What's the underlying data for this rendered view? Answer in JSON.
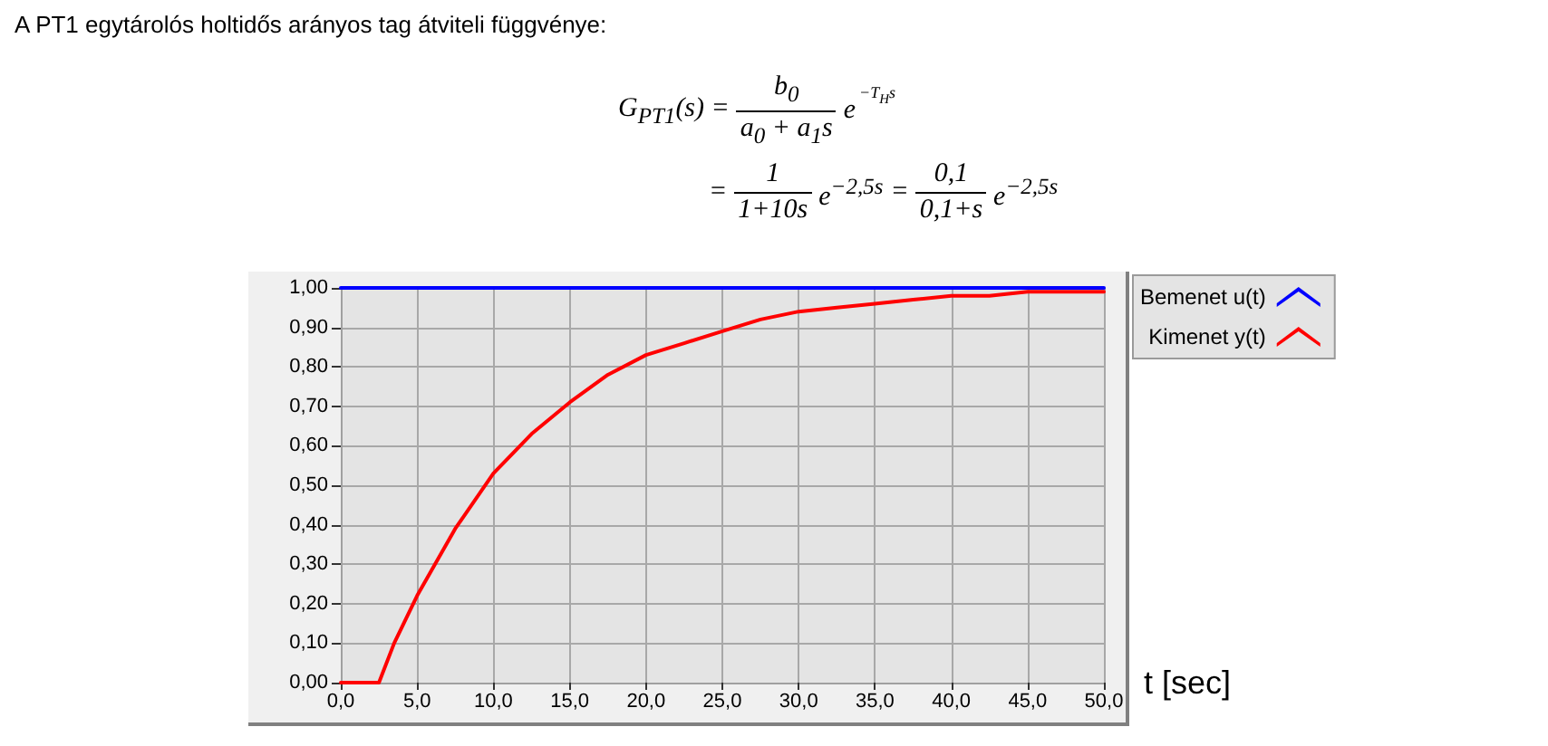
{
  "chart_data": {
    "type": "line",
    "title": "A PT1 egytárolós holtidős arányos tag átviteli függvénye:",
    "annotations": [
      "G$_{PT1}$(s) =",
      "b$_{0}$",
      "a$_{0}$ + a$_{1}$s",
      "e",
      "−T$_{H}$s",
      "=",
      "1",
      "1+10s",
      "e$^{−2,5s}$",
      "=",
      "0,1",
      "0,1+s",
      "e$^{−2,5s}$"
    ],
    "xlabel": "t [sec]",
    "x": [
      0,
      2.5,
      3.5,
      5,
      7.5,
      10,
      12.5,
      15,
      17.5,
      20,
      22.5,
      25,
      27.5,
      30,
      32.5,
      35,
      37.5,
      40,
      42.5,
      45,
      47.5,
      50
    ],
    "series": [
      {
        "name": "Bemenet u(t)",
        "color": "#0000ff",
        "x": [
          0,
          50
        ],
        "values": [
          1,
          1
        ]
      },
      {
        "name": "Kimenet y(t)",
        "color": "#ff0000",
        "values": [
          0,
          0,
          0.1,
          0.22,
          0.39,
          0.53,
          0.63,
          0.71,
          0.78,
          0.83,
          0.86,
          0.89,
          0.92,
          0.94,
          0.95,
          0.96,
          0.97,
          0.98,
          0.98,
          0.99,
          0.99,
          0.99
        ]
      }
    ],
    "xlim": [
      0,
      50
    ],
    "xticks": [
      {
        "value": 0,
        "label": "0,0"
      },
      {
        "value": 5,
        "label": "5,0"
      },
      {
        "value": 10,
        "label": "10,0"
      },
      {
        "value": 15,
        "label": "15,0"
      },
      {
        "value": 20,
        "label": "20,0"
      },
      {
        "value": 25,
        "label": "25,0"
      },
      {
        "value": 30,
        "label": "30,0"
      },
      {
        "value": 35,
        "label": "35,0"
      },
      {
        "value": 40,
        "label": "40,0"
      },
      {
        "value": 45,
        "label": "45,0"
      },
      {
        "value": 50,
        "label": "50,0"
      }
    ],
    "ylim": [
      0,
      1
    ],
    "yticks": [
      {
        "value": 0,
        "label": "0,00"
      },
      {
        "value": 0.1,
        "label": "0,10"
      },
      {
        "value": 0.2,
        "label": "0,20"
      },
      {
        "value": 0.3,
        "label": "0,30"
      },
      {
        "value": 0.4,
        "label": "0,40"
      },
      {
        "value": 0.5,
        "label": "0,50"
      },
      {
        "value": 0.6,
        "label": "0,60"
      },
      {
        "value": 0.7,
        "label": "0,70"
      },
      {
        "value": 0.8,
        "label": "0,80"
      },
      {
        "value": 0.9,
        "label": "0,90"
      },
      {
        "value": 1,
        "label": "1,00"
      }
    ],
    "grid": true,
    "legend": "top right",
    "marker": "none",
    "line_style": "solid"
  }
}
